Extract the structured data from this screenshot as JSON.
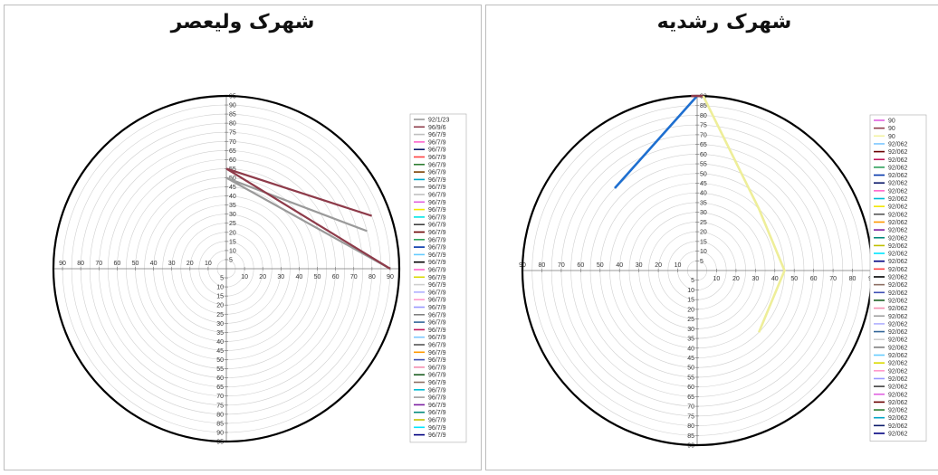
{
  "chart_data": [
    {
      "type": "line",
      "subtype": "radar/polar",
      "title": "شهرک ولیعصر",
      "rlim": [
        0,
        95
      ],
      "ticks": [
        5,
        10,
        15,
        20,
        25,
        30,
        35,
        40,
        45,
        50,
        55,
        60,
        65,
        70,
        75,
        80,
        85,
        90,
        95
      ],
      "axis_tick_labels": [
        "10",
        "20",
        "30",
        "40",
        "50",
        "60",
        "70",
        "80",
        "90"
      ],
      "series": [
        {
          "name": "92/1/23",
          "color": "#9a9a9a",
          "points": [
            [
              90,
              0
            ],
            [
              50,
              90
            ],
            [
              80,
              15
            ]
          ]
        },
        {
          "name": "96/9/6",
          "color": "#8e3b4a",
          "points": [
            [
              90,
              0
            ],
            [
              55,
              90
            ],
            [
              85,
              20
            ]
          ]
        }
      ],
      "legend": [
        "92/1/23",
        "96/9/6",
        "96/7/9",
        "96/7/9",
        "96/7/9",
        "96/7/9",
        "96/7/9",
        "96/7/9",
        "96/7/9",
        "96/7/9",
        "96/7/9",
        "96/7/9",
        "96/7/9",
        "96/7/9",
        "96/7/9",
        "96/7/9",
        "96/7/9",
        "96/7/9",
        "96/7/9",
        "96/7/9",
        "96/7/9",
        "96/7/9",
        "96/7/9",
        "96/7/9",
        "96/7/9",
        "96/7/9",
        "96/7/9",
        "96/7/9",
        "96/7/9",
        "96/7/9",
        "96/7/9",
        "96/7/9",
        "96/7/9",
        "96/7/9",
        "96/7/9",
        "96/7/9",
        "96/7/9",
        "96/7/9",
        "96/7/9",
        "96/7/9",
        "96/7/9",
        "96/7/9",
        "96/7/9"
      ],
      "legend_colors": [
        "#9a9a9a",
        "#8e3b4a",
        "#bfbfbf",
        "#ff66cc",
        "#0d1b6b",
        "#ff4040",
        "#2e7d32",
        "#7b3f00",
        "#00a6c8",
        "#888888",
        "#c0c0c0",
        "#e060e0",
        "#f2e600",
        "#00e5e5",
        "#404040",
        "#6b0000",
        "#2ca05a",
        "#0033aa",
        "#66ccff",
        "#000000",
        "#ff66cc",
        "#dada00",
        "#cfcfcf",
        "#b0b0ff",
        "#ff99cc",
        "#9999ff",
        "#808080",
        "#336699",
        "#c2185b",
        "#7cc7ff",
        "#555555",
        "#ff9900",
        "#3f51b5",
        "#f48fb1",
        "#1b5e20",
        "#8d6e63",
        "#00bcd4",
        "#9e9e9e",
        "#7b1fa2",
        "#00897b",
        "#c0c000",
        "#00e5ff",
        "#000080"
      ]
    },
    {
      "type": "line",
      "subtype": "radar/polar",
      "title": "شهرک رشدیه",
      "rlim": [
        0,
        90
      ],
      "ticks": [
        5,
        10,
        15,
        20,
        25,
        30,
        35,
        40,
        45,
        50,
        55,
        60,
        65,
        70,
        75,
        80,
        85,
        90
      ],
      "axis_tick_labels": [
        "10",
        "20",
        "30",
        "40",
        "50",
        "60",
        "70",
        "80",
        "90"
      ],
      "series": [
        {
          "name": "90",
          "color": "#1e6fd0",
          "points": [
            [
              90,
              90
            ],
            [
              60,
              135
            ]
          ]
        },
        {
          "name": "90",
          "color": "#8e3b4a",
          "points": [
            [
              90,
              92
            ],
            [
              90,
              88
            ]
          ]
        },
        {
          "name": "90",
          "color": "#eeee99",
          "points": [
            [
              90,
              88
            ],
            [
              45,
              45
            ],
            [
              45,
              0
            ],
            [
              45,
              -45
            ]
          ]
        }
      ],
      "legend": [
        "90",
        "90",
        "90",
        "92/062",
        "92/062",
        "92/062",
        "92/062",
        "92/062",
        "92/062",
        "92/062",
        "92/062",
        "92/062",
        "92/062",
        "92/062",
        "92/062",
        "92/062",
        "92/062",
        "92/062",
        "92/062",
        "92/062",
        "92/062",
        "92/062",
        "92/062",
        "92/062",
        "92/062",
        "92/062",
        "92/062",
        "92/062",
        "92/062",
        "92/062",
        "92/062",
        "92/062",
        "92/062",
        "92/062",
        "92/062",
        "92/062",
        "92/062",
        "92/062",
        "92/062",
        "92/062",
        "92/062"
      ],
      "legend_colors": [
        "#e060e0",
        "#8e3b4a",
        "#f2f2a0",
        "#7cc7ff",
        "#6b0000",
        "#c2185b",
        "#2ca05a",
        "#0033aa",
        "#0d1b6b",
        "#ff66cc",
        "#00bcd4",
        "#f2e600",
        "#555555",
        "#ff9900",
        "#7b1fa2",
        "#00897b",
        "#c0c000",
        "#00e5ff",
        "#000080",
        "#ff4040",
        "#000000",
        "#8d6e63",
        "#3f51b5",
        "#1b5e20",
        "#f48fb1",
        "#9e9e9e",
        "#b0b0ff",
        "#336699",
        "#cfcfcf",
        "#808080",
        "#66ccff",
        "#dada00",
        "#ff99cc",
        "#9999ff",
        "#404040",
        "#e060e0",
        "#6b0000",
        "#2e7d32",
        "#00a6c8",
        "#0d1b6b",
        "#000080"
      ]
    }
  ]
}
